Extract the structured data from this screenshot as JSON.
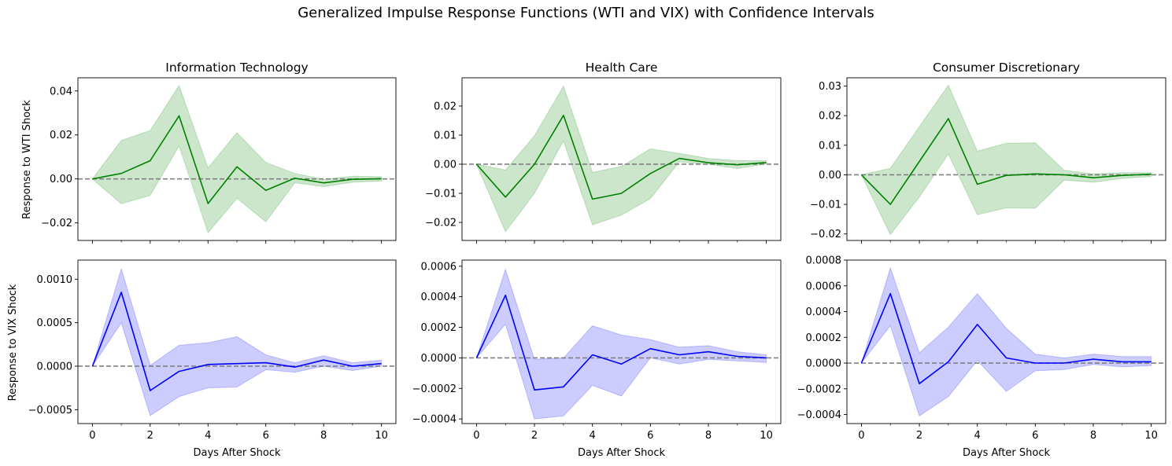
{
  "suptitle": "Generalized Impulse Response Functions (WTI and VIX) with Confidence Intervals",
  "xlabel": "Days After Shock",
  "row_labels": [
    "Response to WTI Shock",
    "Response to VIX Shock"
  ],
  "colors": {
    "wti_line": "#008000",
    "wti_fill": "#008000",
    "vix_line": "#0000ff",
    "vix_fill": "#0000ff",
    "zero_line": "#808080"
  },
  "chart_data": [
    {
      "type": "line",
      "title": "Information Technology",
      "row": 0,
      "col": 0,
      "x": [
        0,
        1,
        2,
        3,
        4,
        5,
        6,
        7,
        8,
        9,
        10
      ],
      "series": [
        {
          "values": [
            0,
            0.0025,
            0.0083,
            0.0287,
            -0.0112,
            0.0055,
            -0.0052,
            0.0003,
            -0.0018,
            -0.0002,
            0.0001
          ],
          "lower": [
            0,
            -0.0113,
            -0.0075,
            0.015,
            -0.0245,
            -0.0088,
            -0.0195,
            -0.0018,
            -0.0035,
            -0.0015,
            -0.001
          ],
          "upper": [
            0,
            0.0175,
            0.022,
            0.0425,
            0.005,
            0.021,
            0.0075,
            0.0025,
            -0.0002,
            0.0012,
            0.001
          ]
        }
      ],
      "ylim": [
        -0.028,
        0.046
      ],
      "yticks": [
        -0.02,
        0.0,
        0.02,
        0.04
      ],
      "ytick_labels": [
        "−0.02",
        "0.00",
        "0.02",
        "0.04"
      ]
    },
    {
      "type": "line",
      "title": "Health Care",
      "row": 0,
      "col": 1,
      "x": [
        0,
        1,
        2,
        3,
        4,
        5,
        6,
        7,
        8,
        9,
        10
      ],
      "series": [
        {
          "values": [
            0,
            -0.0113,
            0.0,
            0.0168,
            -0.012,
            -0.01,
            -0.0032,
            0.002,
            0.0005,
            -0.0002,
            0.0006
          ],
          "lower": [
            0,
            -0.0232,
            -0.01,
            0.008,
            -0.0208,
            -0.0175,
            -0.0118,
            0.0008,
            0.0,
            -0.0015,
            0.0001
          ],
          "upper": [
            0,
            -0.002,
            0.0098,
            0.0268,
            -0.0028,
            -0.0008,
            0.0053,
            0.0037,
            0.002,
            0.0012,
            0.0012
          ]
        }
      ],
      "ylim": [
        -0.0262,
        0.0297
      ],
      "yticks": [
        -0.02,
        -0.01,
        0.0,
        0.01,
        0.02
      ],
      "ytick_labels": [
        "−0.02",
        "−0.01",
        "0.00",
        "0.01",
        "0.02"
      ]
    },
    {
      "type": "line",
      "title": "Consumer Discretionary",
      "row": 0,
      "col": 2,
      "x": [
        0,
        1,
        2,
        3,
        4,
        5,
        6,
        7,
        8,
        9,
        10
      ],
      "series": [
        {
          "values": [
            0,
            -0.01,
            0.0045,
            0.019,
            -0.0032,
            -0.0002,
            0.0003,
            0.0,
            -0.001,
            -0.0002,
            0.0002
          ],
          "lower": [
            0,
            -0.0202,
            -0.0075,
            0.007,
            -0.0135,
            -0.0112,
            -0.0113,
            -0.0018,
            -0.0025,
            -0.0012,
            -0.0006
          ],
          "upper": [
            0,
            0.0022,
            0.0163,
            0.0303,
            0.008,
            0.0107,
            0.0108,
            0.0015,
            0.0003,
            0.0007,
            0.0007
          ]
        }
      ],
      "ylim": [
        -0.0222,
        0.0328
      ],
      "yticks": [
        -0.02,
        -0.01,
        0.0,
        0.01,
        0.02,
        0.03
      ],
      "ytick_labels": [
        "−0.02",
        "−0.01",
        "0.00",
        "0.01",
        "0.02",
        "0.03"
      ]
    },
    {
      "type": "line",
      "title": "",
      "row": 1,
      "col": 0,
      "x": [
        0,
        1,
        2,
        3,
        4,
        5,
        6,
        7,
        8,
        9,
        10
      ],
      "series": [
        {
          "values": [
            0,
            0.00085,
            -0.00028,
            -6e-05,
            2e-05,
            3e-05,
            4e-05,
            -1e-05,
            7e-05,
            0.0,
            3e-05
          ],
          "lower": [
            0,
            0.0005,
            -0.00057,
            -0.00035,
            -0.00025,
            -0.00024,
            -4e-05,
            -7e-05,
            0.0,
            -5e-05,
            0.0
          ],
          "upper": [
            0,
            0.00112,
            1e-05,
            0.00024,
            0.00027,
            0.00034,
            0.00013,
            4e-05,
            0.00012,
            4e-05,
            7e-05
          ]
        }
      ],
      "ylim": [
        -0.00066,
        0.00122
      ],
      "yticks": [
        -0.0005,
        0.0,
        0.0005,
        0.001
      ],
      "ytick_labels": [
        "−0.0005",
        "0.0000",
        "0.0005",
        "0.0010"
      ]
    },
    {
      "type": "line",
      "title": "",
      "row": 1,
      "col": 1,
      "x": [
        0,
        1,
        2,
        3,
        4,
        5,
        6,
        7,
        8,
        9,
        10
      ],
      "series": [
        {
          "values": [
            0,
            0.00041,
            -0.00021,
            -0.00019,
            2e-05,
            -4e-05,
            6e-05,
            2e-05,
            4e-05,
            1e-05,
            0.0
          ],
          "lower": [
            0,
            0.00022,
            -0.0004,
            -0.00038,
            -0.00018,
            -0.00025,
            0.0,
            -4e-05,
            -1e-05,
            -2e-05,
            -3e-05
          ],
          "upper": [
            0,
            0.00058,
            -1e-05,
            0.0,
            0.00021,
            0.00015,
            0.00012,
            7e-05,
            8e-05,
            4e-05,
            2e-05
          ]
        }
      ],
      "ylim": [
        -0.00043,
        0.00064
      ],
      "yticks": [
        -0.0004,
        -0.0002,
        0.0,
        0.0002,
        0.0004,
        0.0006
      ],
      "ytick_labels": [
        "−0.0004",
        "−0.0002",
        "0.0000",
        "0.0002",
        "0.0004",
        "0.0006"
      ]
    },
    {
      "type": "line",
      "title": "",
      "row": 1,
      "col": 2,
      "x": [
        0,
        1,
        2,
        3,
        4,
        5,
        6,
        7,
        8,
        9,
        10
      ],
      "series": [
        {
          "values": [
            0,
            0.00054,
            -0.00016,
            1e-05,
            0.0003,
            4e-05,
            0.0,
            0.0,
            3e-05,
            1e-05,
            1e-05
          ],
          "lower": [
            0,
            0.00029,
            -0.00041,
            -0.00026,
            2e-05,
            -0.00022,
            -6e-05,
            -5e-05,
            -1e-05,
            -3e-05,
            -2e-05
          ],
          "upper": [
            0,
            0.00074,
            8e-05,
            0.00028,
            0.00054,
            0.00027,
            7e-05,
            4e-05,
            7e-05,
            5e-05,
            5e-05
          ]
        }
      ],
      "ylim": [
        -0.00047,
        0.0008
      ],
      "yticks": [
        -0.0004,
        -0.0002,
        0.0,
        0.0002,
        0.0004,
        0.0006,
        0.0008
      ],
      "ytick_labels": [
        "−0.0004",
        "−0.0002",
        "0.0000",
        "0.0002",
        "0.0004",
        "0.0006",
        "0.0008"
      ]
    }
  ],
  "xticks": [
    0,
    2,
    4,
    6,
    8,
    10
  ],
  "xtick_labels": [
    "0",
    "2",
    "4",
    "6",
    "8",
    "10"
  ],
  "xlim": [
    -0.5,
    10.5
  ],
  "x_minor_ticks": [
    1,
    3,
    5,
    7,
    9
  ]
}
